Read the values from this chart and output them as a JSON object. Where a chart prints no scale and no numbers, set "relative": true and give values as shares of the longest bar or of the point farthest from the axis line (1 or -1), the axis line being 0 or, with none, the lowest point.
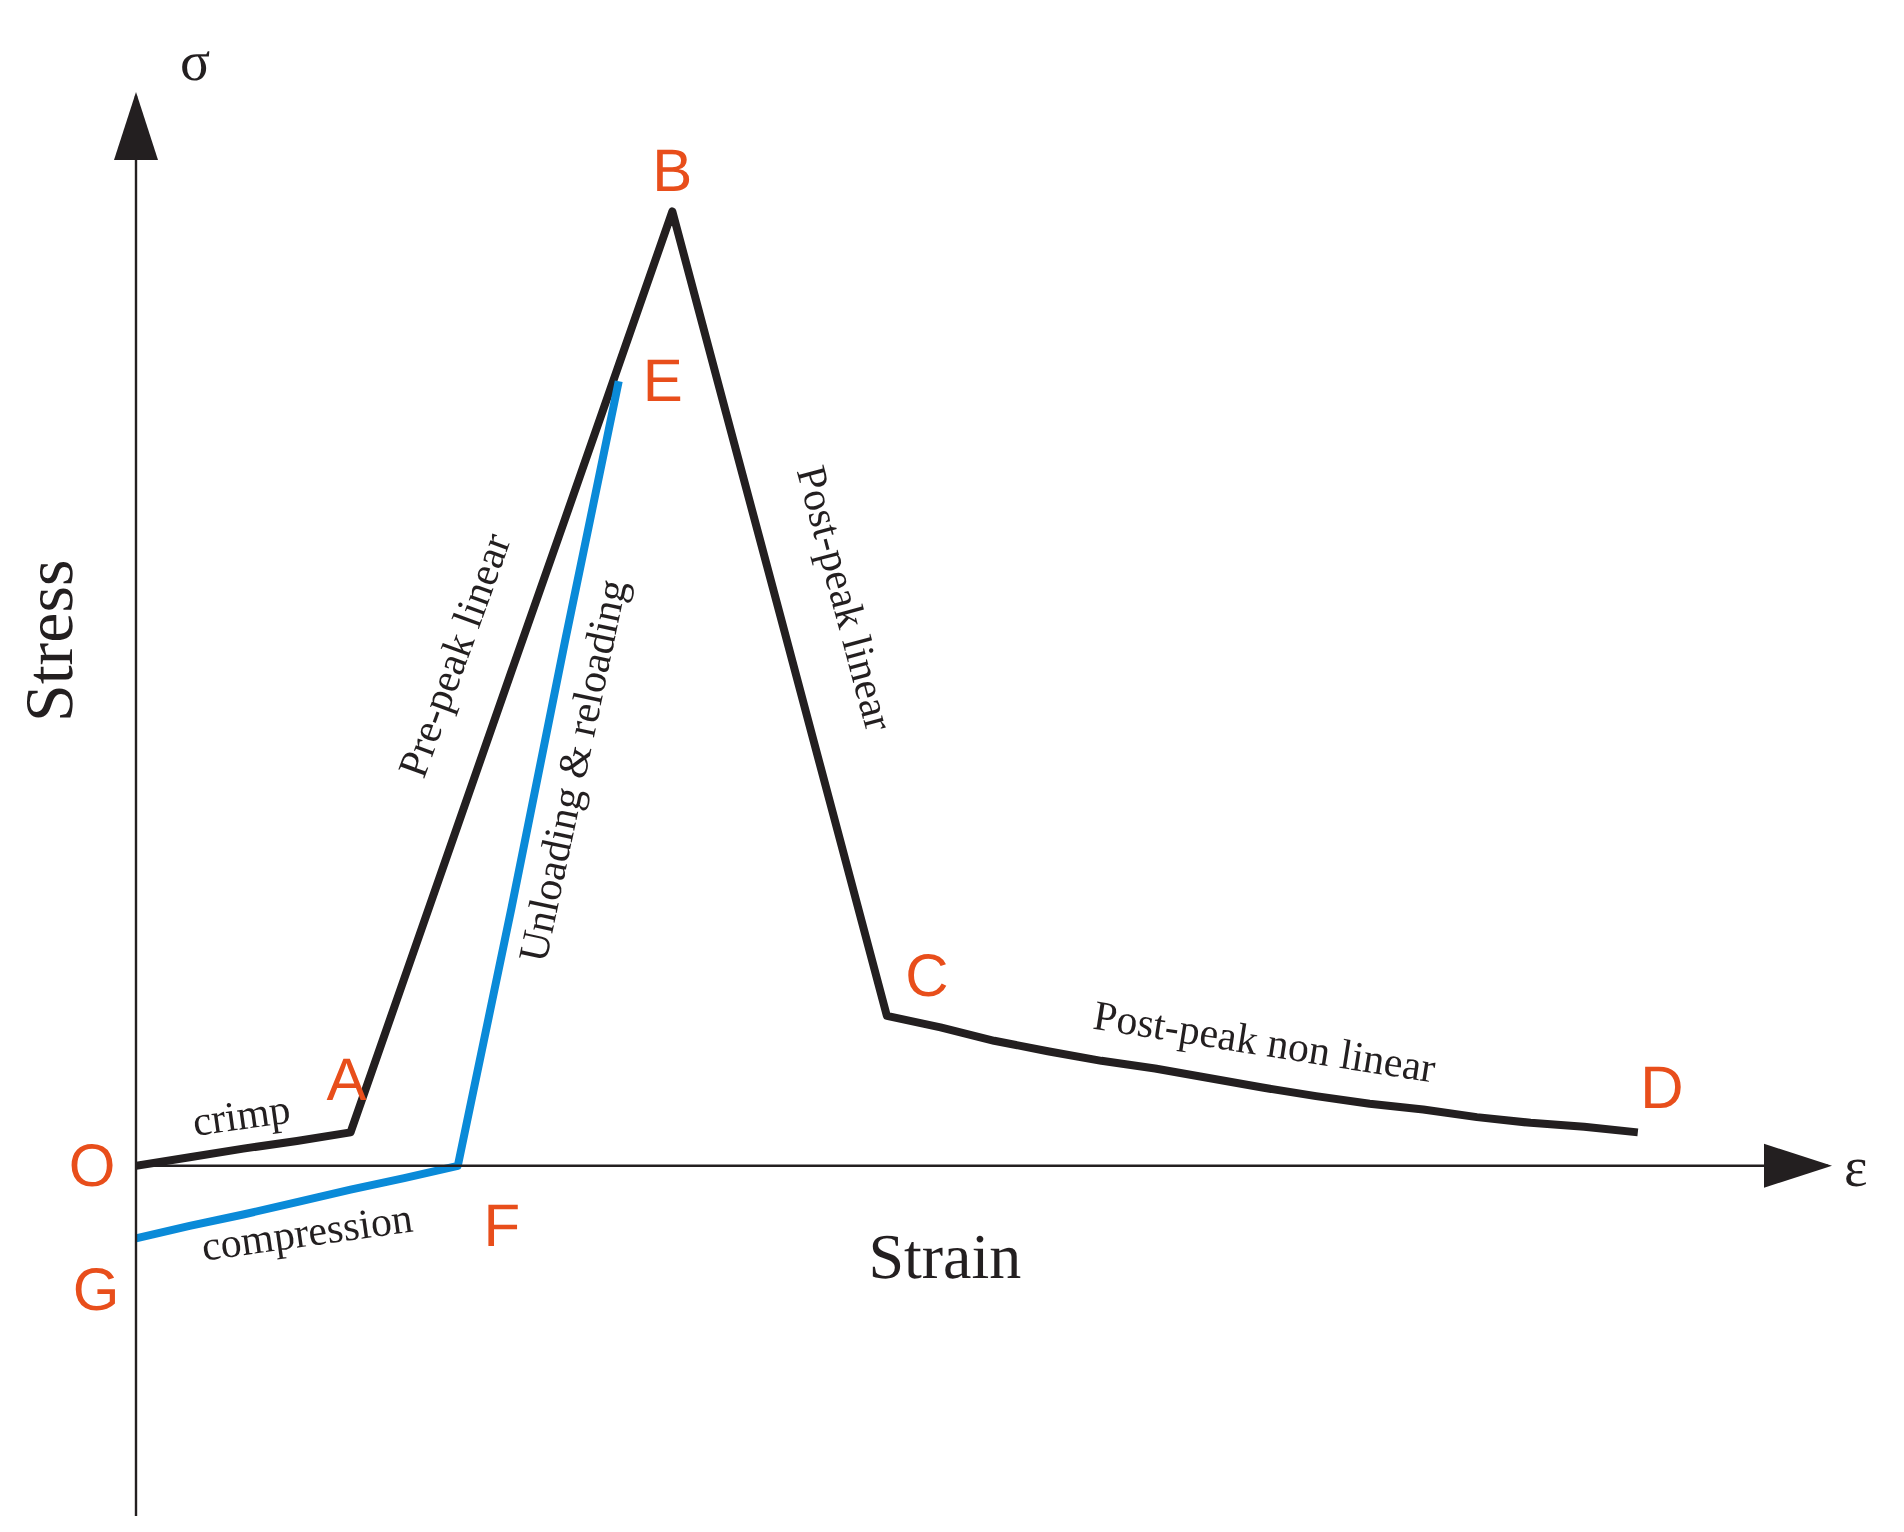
{
  "chart_data": {
    "type": "line",
    "relative": true,
    "xlabel": "Strain",
    "ylabel": "Stress",
    "categories": [
      null,
      null,
      null,
      null,
      null,
      null,
      null,
      null,
      null,
      null,
      null,
      null,
      null,
      null,
      null,
      null,
      null,
      null,
      null,
      null,
      null,
      null,
      null,
      null,
      null,
      null,
      null,
      null,
      null
    ],
    "series": [
      {
        "color": "#231f20",
        "values": [
          0,
          0.009,
          0.018,
          0.026,
          0.035,
          0.196,
          0.357,
          0.518,
          0.678,
          0.839,
          1,
          0.789,
          0.579,
          0.368,
          0.157,
          0.145,
          0.131,
          0.12,
          0.11,
          0.102,
          0.092,
          0.082,
          0.073,
          0.065,
          0.059,
          0.051,
          0.045,
          0.041,
          0.035
        ]
      },
      {
        "color": "#0a8ad8",
        "values": [
          -0.076,
          -0.063,
          -0.051,
          -0.038,
          -0.025,
          -0.013,
          0,
          0.27,
          0.55,
          0.822,
          null,
          null,
          null,
          null,
          null,
          null,
          null,
          null,
          null,
          null,
          null,
          null,
          null,
          null,
          null,
          null,
          null,
          null,
          null
        ]
      }
    ],
    "annotations": [
      "O",
      "A",
      "B",
      "C",
      "D",
      "E",
      "F",
      "G",
      "crimp",
      "Pre-peak linear",
      "Unloading & reloading",
      "Post-peak linear",
      "Post-peak non linear",
      "compression",
      "σ",
      "ε"
    ]
  }
}
